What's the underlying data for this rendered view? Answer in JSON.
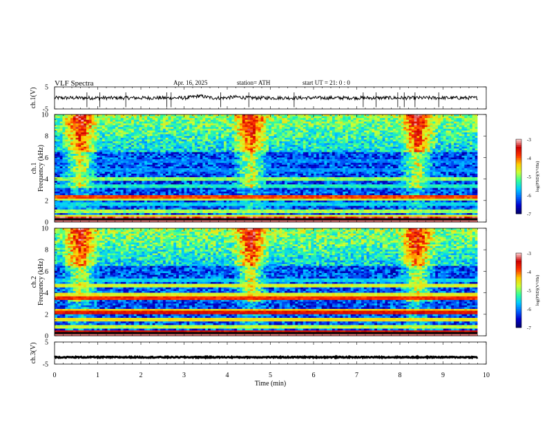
{
  "header": {
    "title": "VLF  Spectra",
    "date": "Apr. 16, 2025",
    "station": "station= ATH",
    "start": "start  UT  =   21: 0  : 0"
  },
  "colors": {
    "axis": "#000000",
    "trace": "#000000",
    "colormap": [
      "#000066",
      "#0000cc",
      "#0066ff",
      "#00ccff",
      "#33ff99",
      "#ccff33",
      "#ffcc00",
      "#ff3300",
      "#cc0000",
      "#ffd6d6"
    ]
  },
  "chart_data": [
    {
      "type": "line",
      "panel": "ch1-waveform",
      "ylabel": "ch.1(V)",
      "ylim": [
        -5,
        5
      ],
      "yticks": [
        "5",
        "-5"
      ],
      "x_range_min": [
        0.0,
        9.8
      ],
      "mean_level": 0.0,
      "noise_amplitude": 0.8,
      "bumps": [
        {
          "t": 3.35,
          "value": 0.9
        },
        {
          "t": 4.2,
          "value": 0.4
        }
      ],
      "spikes_t": [
        0.75,
        1.05,
        1.65,
        2.6,
        2.7,
        3.85,
        4.5,
        5.55,
        7.15,
        7.45,
        7.95,
        8.1,
        8.35,
        8.9
      ]
    },
    {
      "type": "heatmap",
      "panel": "ch1-spectrogram",
      "ylabel": "ch.1\nFrequency  (kHz)",
      "ylim": [
        0,
        10
      ],
      "yticks": [
        "0",
        "2",
        "4",
        "6",
        "8",
        "10"
      ],
      "x_range_min": [
        0.0,
        9.8
      ],
      "colorbar": {
        "label": "log(PSD)(V²/Hz)",
        "range": [
          -7,
          -3
        ],
        "ticks": [
          "-3",
          "-4",
          "-5",
          "-6",
          "-7"
        ]
      },
      "bursts_min": [
        0.6,
        4.55,
        8.4
      ],
      "bands_khz": [
        {
          "f": 0.3,
          "log_psd": -3.3
        },
        {
          "f": 0.55,
          "log_psd": -4.6
        },
        {
          "f": 1.0,
          "log_psd": -4.9
        },
        {
          "f": 1.6,
          "log_psd": -5.6
        },
        {
          "f": 2.1,
          "log_psd": -4.8
        },
        {
          "f": 2.3,
          "log_psd": -3.9
        },
        {
          "f": 3.4,
          "log_psd": -5.4
        },
        {
          "f": 4.0,
          "log_psd": -5.0
        },
        {
          "f": 4.8,
          "log_psd": -6.0
        },
        {
          "f": 5.6,
          "log_psd": -6.1
        }
      ]
    },
    {
      "type": "heatmap",
      "panel": "ch2-spectrogram",
      "ylabel": "ch.2\nFrequency  (kHz)",
      "ylim": [
        0,
        10
      ],
      "yticks": [
        "0",
        "2",
        "4",
        "6",
        "8",
        "10"
      ],
      "x_range_min": [
        0.0,
        9.8
      ],
      "colorbar": {
        "label": "log(PSD)(V²/Hz)",
        "range": [
          -7,
          -3
        ],
        "ticks": [
          "-3",
          "-4",
          "-5",
          "-6",
          "-7"
        ]
      },
      "bursts_min": [
        0.6,
        4.55,
        8.4
      ],
      "bands_khz": [
        {
          "f": 0.3,
          "log_psd": -3.6
        },
        {
          "f": 0.9,
          "log_psd": -4.8
        },
        {
          "f": 1.5,
          "log_psd": -4.5
        },
        {
          "f": 2.1,
          "log_psd": -3.6
        },
        {
          "f": 2.4,
          "log_psd": -4.4
        },
        {
          "f": 3.5,
          "log_psd": -3.8
        },
        {
          "f": 3.9,
          "log_psd": -4.6
        },
        {
          "f": 4.6,
          "log_psd": -4.7
        },
        {
          "f": 5.2,
          "log_psd": -5.6
        }
      ]
    },
    {
      "type": "line",
      "panel": "ch3-waveform",
      "ylabel": "ch.3(V)",
      "ylim": [
        -5,
        5
      ],
      "yticks": [
        "5",
        "-5"
      ],
      "x_range_min": [
        0.0,
        9.8
      ],
      "mean_level": -1.9,
      "noise_amplitude": 0.25,
      "bumps": [],
      "spikes_t": []
    }
  ],
  "x_axis": {
    "label": "Time  (min)",
    "ticks": [
      "0",
      "1",
      "2",
      "3",
      "4",
      "5",
      "6",
      "7",
      "8",
      "9",
      "10"
    ],
    "range": [
      0,
      10
    ]
  }
}
